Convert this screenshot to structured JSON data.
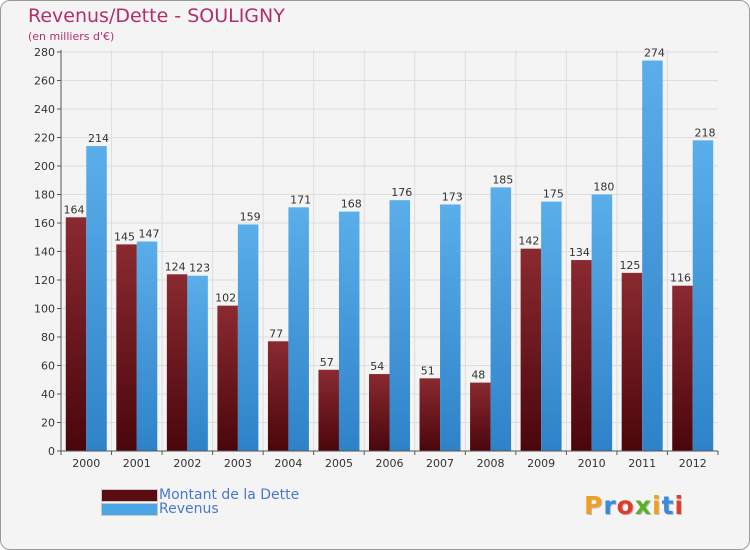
{
  "title": "Revenus/Dette - SOULIGNY",
  "subtitle": "(en milliers d'€)",
  "colors": {
    "dette": "#7a1a22",
    "dette_dark": "#4a0a10",
    "revenus": "#4ba6e6",
    "revenus_dark": "#2a7fc4",
    "text_accent": "#b0306a",
    "legend_text": "#4a78c8"
  },
  "legend": [
    {
      "label": "Montant de la Dette",
      "color": "#5a0c12"
    },
    {
      "label": "Revenus",
      "color": "#4ba6e6"
    }
  ],
  "logo_text": "Proxiti",
  "chart_data": {
    "type": "bar",
    "title": "Revenus/Dette - SOULIGNY",
    "subtitle": "(en milliers d'€)",
    "categories": [
      "2000",
      "2001",
      "2002",
      "2003",
      "2004",
      "2005",
      "2006",
      "2007",
      "2008",
      "2009",
      "2010",
      "2011",
      "2012"
    ],
    "series": [
      {
        "name": "Montant de la Dette",
        "values": [
          164,
          145,
          124,
          102,
          77,
          57,
          54,
          51,
          48,
          142,
          134,
          125,
          116
        ]
      },
      {
        "name": "Revenus",
        "values": [
          214,
          147,
          123,
          159,
          171,
          168,
          176,
          173,
          185,
          175,
          180,
          274,
          218
        ]
      }
    ],
    "ylim": [
      0,
      280
    ],
    "yticks": [
      0,
      20,
      40,
      60,
      80,
      100,
      120,
      140,
      160,
      180,
      200,
      220,
      240,
      260,
      280
    ],
    "grid": true,
    "legend_position": "bottom-left"
  }
}
